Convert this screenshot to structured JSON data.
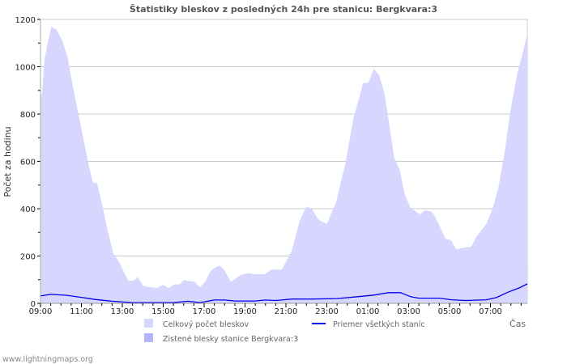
{
  "chart_data": {
    "type": "area",
    "title": "Štatistiky bleskov z posledných 24h pre stanicu: Bergkvara:3",
    "xlabel": "Čas",
    "ylabel": "Počet za hodinu",
    "ylim": [
      0,
      1200
    ],
    "yticks": [
      0,
      200,
      400,
      600,
      800,
      1000,
      1200
    ],
    "x_unit": "hours since 09:00",
    "xlim": [
      0,
      23.8
    ],
    "xtick_labels": [
      "09:00",
      "11:00",
      "13:00",
      "15:00",
      "17:00",
      "19:00",
      "21:00",
      "23:00",
      "01:00",
      "03:00",
      "05:00",
      "07:00"
    ],
    "grid": true,
    "legend_position": "bottom",
    "colors": {
      "total": "#d6d6ff",
      "station": "#b4b4ff",
      "average": "#0000ee"
    },
    "series": [
      {
        "name": "Celkový počet bleskov",
        "kind": "area",
        "x": [
          0,
          0.07,
          0.2,
          0.35,
          0.53,
          0.79,
          1.06,
          1.32,
          1.58,
          1.85,
          2.11,
          2.38,
          2.57,
          2.77,
          3.04,
          3.3,
          3.56,
          3.83,
          4.09,
          4.29,
          4.55,
          4.75,
          5.02,
          5.4,
          5.68,
          6.0,
          6.27,
          6.53,
          6.8,
          7.0,
          7.52,
          7.79,
          8.05,
          8.32,
          8.58,
          8.78,
          8.98,
          9.31,
          9.77,
          10.16,
          10.43,
          10.96,
          11.3,
          11.8,
          12.28,
          12.67,
          13.0,
          13.27,
          13.6,
          14.0,
          14.45,
          14.9,
          15.3,
          15.77,
          16.03,
          16.3,
          16.57,
          16.83,
          17.29,
          17.56,
          17.8,
          18.09,
          18.55,
          18.8,
          19.15,
          19.4,
          19.8,
          20.07,
          20.33,
          20.73,
          21.06,
          21.33,
          21.8,
          22.1,
          22.38,
          22.7,
          22.98,
          23.3,
          23.56,
          23.8
        ],
        "values": [
          880,
          883,
          1031,
          1100,
          1168,
          1156,
          1111,
          1043,
          917,
          803,
          690,
          575,
          509,
          508,
          405,
          301,
          211,
          177,
          131,
          96,
          96,
          110,
          74,
          68,
          65,
          78,
          65,
          80,
          80,
          98,
          91,
          68,
          91,
          137,
          154,
          160,
          142,
          91,
          119,
          128,
          123,
          123,
          143,
          143,
          222,
          348,
          410,
          399,
          353,
          336,
          427,
          587,
          780,
          930,
          933,
          991,
          963,
          882,
          616,
          564,
          462,
          404,
          376,
          393,
          387,
          348,
          273,
          267,
          228,
          236,
          239,
          284,
          336,
          399,
          484,
          643,
          814,
          967,
          1053,
          1140
        ]
      },
      {
        "name": "Zistené blesky stanice Bergkvara:3",
        "kind": "area",
        "x": [],
        "values": []
      },
      {
        "name": "Priemer všetkých staníc",
        "kind": "line",
        "x": [
          0,
          0.5,
          1.3,
          2.1,
          2.7,
          3.5,
          4.5,
          6.5,
          7.2,
          7.8,
          8.5,
          9.0,
          9.5,
          10.5,
          11.0,
          11.5,
          12.3,
          13.3,
          14.5,
          15.5,
          16.3,
          17.0,
          17.6,
          18.1,
          18.5,
          19.5,
          20.1,
          20.8,
          21.8,
          22.3,
          22.8,
          23.4,
          23.8
        ],
        "values": [
          31,
          38,
          34,
          24,
          16,
          9,
          3,
          3,
          9,
          3,
          14,
          14,
          10,
          10,
          14,
          12,
          18,
          18,
          20,
          28,
          35,
          45,
          45,
          28,
          22,
          22,
          15,
          12,
          15,
          25,
          45,
          65,
          82
        ]
      }
    ]
  },
  "footer": "www.lightningmaps.org"
}
